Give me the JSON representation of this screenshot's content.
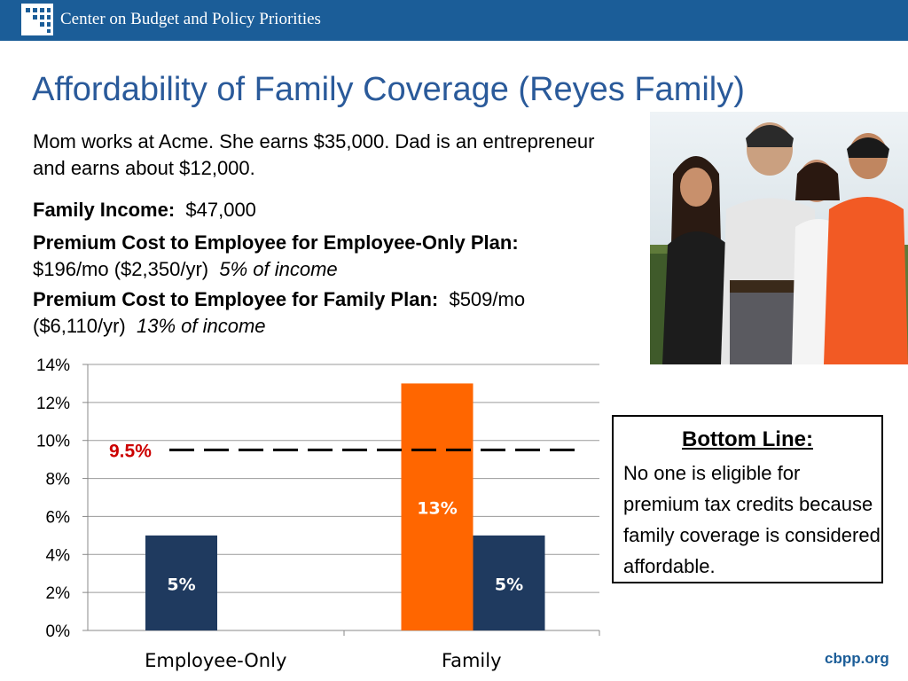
{
  "header": {
    "org_name": "Center on Budget and Policy Priorities"
  },
  "slide": {
    "title": "Affordability of Family Coverage (Reyes Family)",
    "intro": "Mom works at Acme. She earns $35,000. Dad is an entrepreneur and earns about $12,000.",
    "family_income_label": "Family Income:",
    "family_income_value": "$47,000",
    "employee_only_label": "Premium Cost to Employee for Employee-Only Plan:",
    "employee_only_cost": "$196/mo ($2,350/yr)",
    "employee_only_pct": "5% of income",
    "family_plan_label": "Premium Cost to Employee for Family Plan:",
    "family_plan_cost_mo": "$509/mo",
    "family_plan_cost_yr": "($6,110/yr)",
    "family_plan_pct": "13% of income"
  },
  "bottom_line": {
    "title": "Bottom Line:",
    "text": "No one is eligible for premium tax credits because family coverage is considered affordable."
  },
  "footer": {
    "site": "cbpp.org"
  },
  "colors": {
    "header": "#1b5d98",
    "title": "#2a5a9a",
    "navy_bar": "#1f3a5f",
    "orange_bar": "#ff6600",
    "threshold_label": "#cc0000"
  },
  "chart_data": {
    "type": "bar",
    "categories": [
      "Employee-Only",
      "Family"
    ],
    "series": [
      {
        "values": [
          5,
          13
        ],
        "color": "#ff6600"
      },
      {
        "values": [
          null,
          5
        ],
        "color": "#1f3a5f"
      }
    ],
    "bars": [
      {
        "category": "Employee-Only",
        "value": 5,
        "label": "5%",
        "color": "#1f3a5f"
      },
      {
        "category": "Family",
        "value": 13,
        "label": "13%",
        "color": "#ff6600"
      },
      {
        "category": "Family",
        "value": 5,
        "label": "5%",
        "color": "#1f3a5f"
      }
    ],
    "threshold": {
      "value": 9.5,
      "label": "9.5%",
      "style": "dashed"
    },
    "yticks": [
      "0%",
      "2%",
      "4%",
      "6%",
      "8%",
      "10%",
      "12%",
      "14%"
    ],
    "ylim": [
      0,
      14
    ],
    "grid": true
  }
}
